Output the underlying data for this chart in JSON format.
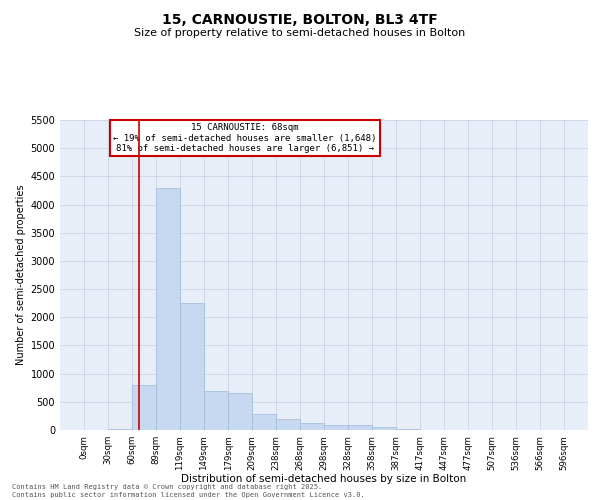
{
  "title": "15, CARNOUSTIE, BOLTON, BL3 4TF",
  "subtitle": "Size of property relative to semi-detached houses in Bolton",
  "xlabel": "Distribution of semi-detached houses by size in Bolton",
  "ylabel": "Number of semi-detached properties",
  "bin_edges": [
    0,
    30,
    60,
    89,
    119,
    149,
    179,
    209,
    238,
    268,
    298,
    328,
    358,
    387,
    417,
    447,
    477,
    507,
    536,
    566,
    596
  ],
  "bar_heights": [
    0,
    10,
    800,
    4300,
    2250,
    700,
    650,
    280,
    200,
    130,
    90,
    80,
    50,
    15,
    8,
    5,
    3,
    2,
    1,
    1
  ],
  "bar_color": "#c6d9f0",
  "bar_edgecolor": "#a0b8d8",
  "property_size": 68,
  "marker_color": "#cc0000",
  "annotation_text_line1": "15 CARNOUSTIE: 68sqm",
  "annotation_text_line2": "← 19% of semi-detached houses are smaller (1,648)",
  "annotation_text_line3": "81% of semi-detached houses are larger (6,851) →",
  "annotation_box_color": "#cc0000",
  "ylim": [
    0,
    5500
  ],
  "yticks": [
    0,
    500,
    1000,
    1500,
    2000,
    2500,
    3000,
    3500,
    4000,
    4500,
    5000,
    5500
  ],
  "grid_color": "#d0d8e8",
  "background_color": "#e8eef8",
  "footer_line1": "Contains HM Land Registry data © Crown copyright and database right 2025.",
  "footer_line2": "Contains public sector information licensed under the Open Government Licence v3.0."
}
